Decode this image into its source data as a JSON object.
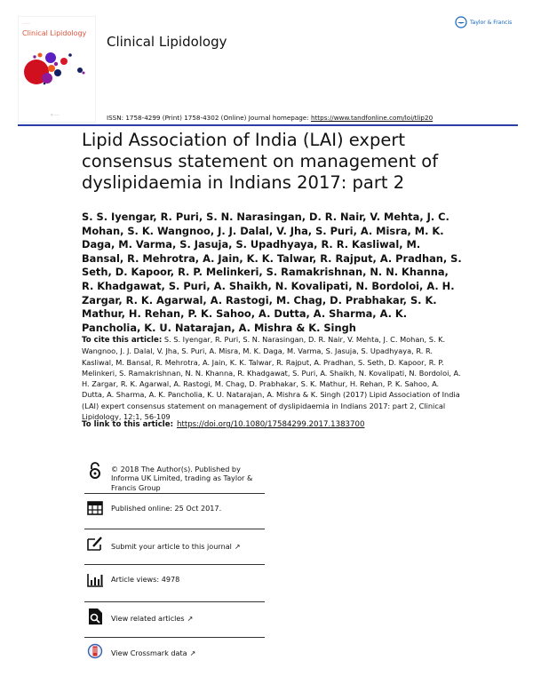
{
  "header": {
    "cover_title": "Clinical Lipidology",
    "journal_title": "Clinical Lipidology",
    "publisher_logo": "Taylor & Francis",
    "issn_text": "ISSN: 1758-4299 (Print) 1758-4302 (Online) Journal homepage: ",
    "homepage_link": "https://www.tandfonline.com/loi/tlip20",
    "rule_color": "#2b3ea8"
  },
  "article": {
    "title": "Lipid Association of India (LAI) expert consensus statement on management of dyslipidaemia in Indians 2017: part 2",
    "authors": "S. S. Iyengar, R. Puri, S. N. Narasingan, D. R. Nair, V. Mehta, J. C. Mohan, S. K. Wangnoo, J. J. Dalal, V. Jha, S. Puri, A. Misra, M. K. Daga, M. Varma, S. Jasuja, S. Upadhyaya, R. R. Kasliwal, M. Bansal, R. Mehrotra, A. Jain, K. K. Talwar, R. Rajput, A. Pradhan, S. Seth, D. Kapoor, R. P. Melinkeri, S. Ramakrishnan, N. N. Khanna, R. Khadgawat, S. Puri, A. Shaikh, N. Kovalipati, N. Bordoloi, A. H. Zargar, R. K. Agarwal, A. Rastogi, M. Chag, D. Prabhakar, S. K. Mathur, H. Rehan, P. K. Sahoo, A. Dutta, A. Sharma, A. K. Pancholia, K. U. Natarajan, A. Mishra & K. Singh",
    "cite_label": "To cite this article:",
    "cite_text": "S. S. Iyengar, R. Puri, S. N. Narasingan, D. R. Nair, V. Mehta, J. C. Mohan, S. K. Wangnoo, J. J. Dalal, V. Jha, S. Puri, A. Misra, M. K. Daga, M. Varma, S. Jasuja, S. Upadhyaya, R. R. Kasliwal, M. Bansal, R. Mehrotra, A. Jain, K. K. Talwar, R. Rajput, A. Pradhan, S. Seth, D. Kapoor, R. P. Melinkeri, S. Ramakrishnan, N. N. Khanna, R. Khadgawat, S. Puri, A. Shaikh, N. Kovalipati, N. Bordoloi, A. H. Zargar, R. K. Agarwal, A. Rastogi, M. Chag, D. Prabhakar, S. K. Mathur, H. Rehan, P. K. Sahoo, A. Dutta, A. Sharma, A. K. Pancholia, K. U. Natarajan, A. Mishra & K. Singh (2017) Lipid Association of India (LAI) expert consensus statement on management of dyslipidaemia in Indians 2017: part 2, Clinical Lipidology, 12:1, 56-109",
    "link_label": "To link to this article:",
    "doi_link": "https://doi.org/10.1080/17584299.2017.1383700"
  },
  "info_items": [
    {
      "icon": "open-access-icon",
      "text": "© 2018 The Author(s). Published by Informa UK Limited, trading as Taylor & Francis Group"
    },
    {
      "icon": "calendar-icon",
      "text": "Published online: 25 Oct 2017."
    },
    {
      "icon": "edit-icon",
      "text": "Submit your article to this journal"
    },
    {
      "icon": "bar-chart-icon",
      "text": "Article views: 4978"
    },
    {
      "icon": "related-articles-icon",
      "text": "View related articles"
    },
    {
      "icon": "crossmark-icon",
      "text": "View Crossmark data"
    }
  ]
}
